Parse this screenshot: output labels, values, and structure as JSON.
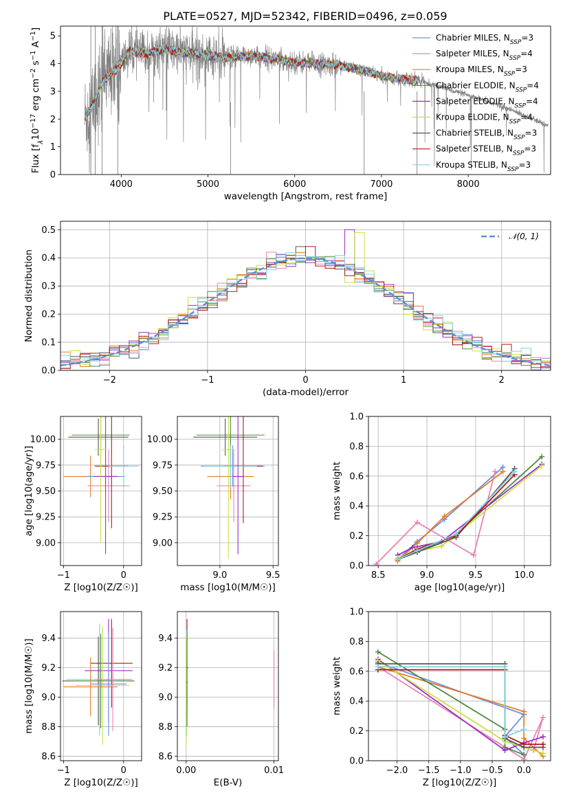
{
  "title": "PLATE=0527, MJD=52342, FIBERID=0496, z=0.059",
  "colors": {
    "Chabrier MILES": "#6b8fe8",
    "Salpeter MILES": "#e682b8",
    "Kroupa MILES": "#e87a20",
    "Chabrier ELODIE": "#4c8a3e",
    "Salpeter ELODIE": "#9b2fc2",
    "Kroupa ELODIE": "#c9e03c",
    "Chabrier STELIB": "#555555",
    "Salpeter STELIB": "#b01818",
    "Kroupa STELIB": "#7fd3de",
    "data": "#808080",
    "normal": "#5b8ed8"
  },
  "chart_data": [
    {
      "id": "spectrum",
      "type": "line",
      "title": "PLATE=0527, MJD=52342, FIBERID=0496, z=0.059",
      "xlabel": "wavelength [Angstrom, rest frame]",
      "ylabel_parts": [
        "Flux [f",
        "λ",
        "10",
        "−17",
        " erg cm",
        "−2",
        " s",
        "−1",
        " A",
        "−1",
        "]"
      ],
      "xlim": [
        3300,
        8950
      ],
      "ylim": [
        0,
        5.35
      ],
      "xticks": [
        4000,
        5000,
        6000,
        7000,
        8000
      ],
      "yticks": [
        0,
        1,
        2,
        3,
        4,
        5
      ],
      "data_range": [
        3580,
        8920
      ],
      "model_range": [
        3580,
        7420
      ],
      "continuum": [
        [
          3580,
          2.05
        ],
        [
          3650,
          2.4
        ],
        [
          3800,
          3.4
        ],
        [
          3950,
          3.8
        ],
        [
          4100,
          4.45
        ],
        [
          4300,
          4.35
        ],
        [
          4500,
          4.55
        ],
        [
          4700,
          4.4
        ],
        [
          5000,
          4.3
        ],
        [
          5200,
          4.2
        ],
        [
          5500,
          4.3
        ],
        [
          5800,
          4.15
        ],
        [
          6000,
          4.05
        ],
        [
          6200,
          4.0
        ],
        [
          6500,
          3.95
        ],
        [
          6800,
          3.75
        ],
        [
          7000,
          3.55
        ],
        [
          7200,
          3.45
        ],
        [
          7400,
          3.4
        ],
        [
          7700,
          3.15
        ],
        [
          8000,
          2.85
        ],
        [
          8300,
          2.55
        ],
        [
          8600,
          2.2
        ],
        [
          8920,
          1.75
        ]
      ],
      "legend": [
        {
          "name": "Chabrier MILES",
          "n": "3"
        },
        {
          "name": "Salpeter MILES",
          "n": "4"
        },
        {
          "name": "Kroupa MILES",
          "n": "3"
        },
        {
          "name": "Chabrier ELODIE",
          "n": "4"
        },
        {
          "name": "Salpeter ELODIE",
          "n": "4"
        },
        {
          "name": "Kroupa ELODIE",
          "n": "4"
        },
        {
          "name": "Chabrier STELIB",
          "n": "3"
        },
        {
          "name": "Salpeter STELIB",
          "n": "3"
        },
        {
          "name": "Kroupa STELIB",
          "n": "3"
        }
      ],
      "legend_n_label": "N",
      "legend_n_sub": "SSP",
      "legend_position": "upper-right"
    },
    {
      "id": "residuals",
      "type": "histogram",
      "xlabel": "(data-model)/error",
      "ylabel": "Normed distribution",
      "xlim": [
        -2.5,
        2.5
      ],
      "ylim": [
        0,
        0.53
      ],
      "xticks": [
        -2,
        -1,
        0,
        1,
        2
      ],
      "yticks": [
        0.0,
        0.1,
        0.2,
        0.3,
        0.4,
        0.5
      ],
      "grid": true,
      "bin_width": 0.1,
      "peak_bins": [
        {
          "series": "Salpeter ELODIE",
          "x": 0.45,
          "y": 0.5
        },
        {
          "series": "Kroupa ELODIE",
          "x": 0.55,
          "y": 0.49
        },
        {
          "series": "Salpeter MILES",
          "x": -0.35,
          "y": 0.42
        },
        {
          "series": "Salpeter STELIB",
          "x": 0.05,
          "y": 0.44
        }
      ],
      "legend": {
        "label": "𝒩(0, 1)",
        "style": "dashed",
        "position": "upper-right"
      }
    },
    {
      "id": "age-vs-Z",
      "type": "errorbar",
      "xlabel": "Z [log10(Z/Z☉)]",
      "ylabel": "age  [log10(age/yr)]",
      "xlim": [
        -1.05,
        0.3
      ],
      "ylim": [
        8.78,
        10.22
      ],
      "xticks": [
        -1,
        0
      ],
      "yticks": [
        9.0,
        9.25,
        9.5,
        9.75,
        10.0
      ]
    },
    {
      "id": "age-vs-mass",
      "type": "errorbar",
      "xlabel": "mass [log10(M/M☉)]",
      "ylabel": "",
      "xlim": [
        8.6,
        9.55
      ],
      "ylim": [
        8.78,
        10.22
      ],
      "xticks": [
        9.0,
        9.5
      ],
      "yticks": [
        9.0,
        9.25,
        9.5,
        9.75,
        10.0
      ]
    },
    {
      "id": "mass-weight-vs-age",
      "type": "line",
      "xlabel": "age  [log10(age/yr)]",
      "ylabel": "mass weight",
      "xlim": [
        8.4,
        10.27
      ],
      "ylim": [
        0,
        1.0
      ],
      "xticks": [
        8.5,
        9.0,
        9.5,
        10.0
      ],
      "yticks": [
        0.0,
        0.2,
        0.4,
        0.6,
        0.8,
        1.0
      ],
      "grid": true,
      "series": [
        {
          "name": "Chabrier MILES",
          "x": [
            8.7,
            8.9,
            9.18,
            9.78
          ],
          "y": [
            0.04,
            0.16,
            0.31,
            0.66
          ]
        },
        {
          "name": "Salpeter MILES",
          "x": [
            8.48,
            8.9,
            9.48,
            9.7
          ],
          "y": [
            0.01,
            0.29,
            0.07,
            0.63
          ]
        },
        {
          "name": "Kroupa MILES",
          "x": [
            8.7,
            8.9,
            9.18,
            9.78
          ],
          "y": [
            0.03,
            0.15,
            0.33,
            0.63
          ]
        },
        {
          "name": "Chabrier ELODIE",
          "x": [
            8.7,
            8.9,
            9.3,
            10.18
          ],
          "y": [
            0.04,
            0.09,
            0.21,
            0.73
          ]
        },
        {
          "name": "Salpeter ELODIE",
          "x": [
            8.7,
            8.85,
            9.15,
            10.18
          ],
          "y": [
            0.07,
            0.12,
            0.16,
            0.68
          ]
        },
        {
          "name": "Kroupa ELODIE",
          "x": [
            8.7,
            8.85,
            9.15,
            10.18
          ],
          "y": [
            0.05,
            0.09,
            0.13,
            0.67
          ]
        },
        {
          "name": "Chabrier STELIB",
          "x": [
            8.7,
            8.9,
            9.3,
            9.9
          ],
          "y": [
            0.04,
            0.09,
            0.19,
            0.65
          ]
        },
        {
          "name": "Salpeter STELIB",
          "x": [
            8.7,
            8.9,
            9.3,
            9.9
          ],
          "y": [
            0.04,
            0.11,
            0.2,
            0.61
          ]
        },
        {
          "name": "Kroupa STELIB",
          "x": [
            8.7,
            8.9,
            9.3,
            9.9
          ],
          "y": [
            0.04,
            0.1,
            0.21,
            0.63
          ]
        }
      ]
    },
    {
      "id": "mass-vs-Z",
      "type": "errorbar",
      "xlabel": "Z [log10(Z/Z☉)]",
      "ylabel": "mass [log10(M/M☉)]",
      "xlim": [
        -1.05,
        0.3
      ],
      "ylim": [
        8.57,
        9.58
      ],
      "xticks": [
        -1,
        0
      ],
      "yticks": [
        8.6,
        8.8,
        9.0,
        9.2,
        9.4
      ]
    },
    {
      "id": "mass-vs-ebv",
      "type": "errorbar",
      "xlabel": "E(B-V)",
      "ylabel": "",
      "xlim": [
        -0.001,
        0.0105
      ],
      "ylim": [
        8.57,
        9.58
      ],
      "xticks": [
        0.0,
        0.01
      ],
      "xticklabels": [
        "0.00",
        "0.01"
      ],
      "yticks": [
        8.6,
        8.8,
        9.0,
        9.2,
        9.4
      ]
    },
    {
      "id": "mass-weight-vs-Z",
      "type": "line",
      "xlabel": "Z [log10(Z/Z☉)]",
      "ylabel": "mass weight",
      "xlim": [
        -2.45,
        0.42
      ],
      "ylim": [
        0,
        1.0
      ],
      "xticks": [
        -2.0,
        -1.5,
        -1.0,
        -0.5,
        0.0
      ],
      "yticks": [
        0.0,
        0.2,
        0.4,
        0.6,
        0.8,
        1.0
      ],
      "grid": true,
      "series": [
        {
          "name": "Chabrier MILES",
          "x": [
            -2.3,
            0.0,
            -0.3,
            0.0
          ],
          "y": [
            0.66,
            0.31,
            0.16,
            0.04
          ]
        },
        {
          "name": "Salpeter MILES",
          "x": [
            -2.3,
            0.0,
            0.3,
            0.15
          ],
          "y": [
            0.63,
            0.01,
            0.29,
            0.07
          ]
        },
        {
          "name": "Kroupa MILES",
          "x": [
            -2.3,
            0.0,
            0.0,
            0.3
          ],
          "y": [
            0.63,
            0.33,
            0.15,
            0.03
          ]
        },
        {
          "name": "Chabrier ELODIE",
          "x": [
            -2.3,
            -0.3,
            -0.3,
            0.0
          ],
          "y": [
            0.73,
            0.21,
            0.09,
            0.04
          ]
        },
        {
          "name": "Salpeter ELODIE",
          "x": [
            -2.3,
            -0.3,
            0.0,
            0.3
          ],
          "y": [
            0.68,
            0.07,
            0.12,
            0.16
          ]
        },
        {
          "name": "Kroupa ELODIE",
          "x": [
            -2.3,
            -0.3,
            0.0,
            0.3
          ],
          "y": [
            0.67,
            0.13,
            0.09,
            0.05
          ]
        },
        {
          "name": "Chabrier STELIB",
          "x": [
            -2.3,
            -0.3,
            -0.3,
            0.0,
            0.3
          ],
          "y": [
            0.65,
            0.65,
            0.15,
            0.09,
            0.09
          ]
        },
        {
          "name": "Salpeter STELIB",
          "x": [
            -2.3,
            -0.3,
            -0.3,
            0.0,
            0.3
          ],
          "y": [
            0.61,
            0.61,
            0.17,
            0.11,
            0.11
          ]
        },
        {
          "name": "Kroupa STELIB",
          "x": [
            -2.3,
            -0.3,
            -0.3,
            0.0
          ],
          "y": [
            0.63,
            0.63,
            0.16,
            0.21
          ]
        }
      ]
    }
  ]
}
